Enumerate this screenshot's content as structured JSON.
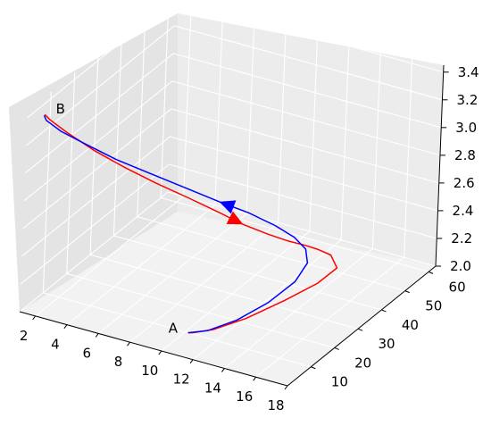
{
  "chart_data": {
    "type": "line3d",
    "title": "",
    "xlabel": "",
    "ylabel": "",
    "zlabel": "",
    "x_ticks": [
      "2",
      "4",
      "6",
      "8",
      "10",
      "12",
      "14",
      "16",
      "18"
    ],
    "y_ticks": [
      "10",
      "20",
      "30",
      "40",
      "50",
      "60"
    ],
    "z_ticks": [
      "2.0",
      "2.2",
      "2.4",
      "2.6",
      "2.8",
      "3.0",
      "3.2",
      "3.4"
    ],
    "xlim": [
      1,
      18
    ],
    "ylim": [
      0,
      63
    ],
    "zlim": [
      2.0,
      3.45
    ],
    "grid": true,
    "annotations": [
      {
        "text": "A",
        "x": 10.2,
        "y": 10,
        "z": 2.0
      },
      {
        "text": "B",
        "x": 2,
        "y": 0,
        "z": 3.45
      }
    ],
    "series": [
      {
        "color": "#ff0000",
        "arrow_direction": "A to B... forward from B to A",
        "points": [
          [
            1.98,
            0.7,
            3.445
          ],
          [
            2.2,
            1.6,
            3.4
          ],
          [
            3.0,
            3.9,
            3.3
          ],
          [
            4.2,
            8.0,
            3.15
          ],
          [
            5.4,
            13.0,
            3.0
          ],
          [
            6.6,
            18.5,
            2.85
          ],
          [
            7.8,
            24.5,
            2.7
          ],
          [
            8.8,
            30.5,
            2.55
          ],
          [
            9.6,
            36.5,
            2.4
          ],
          [
            10.3,
            42.5,
            2.27
          ],
          [
            10.9,
            47.5,
            2.17
          ],
          [
            11.4,
            51.5,
            2.1
          ],
          [
            11.9,
            53.5,
            2.06
          ],
          [
            12.7,
            53.8,
            2.04
          ],
          [
            13.6,
            50.5,
            2.02
          ],
          [
            13.5,
            43.0,
            2.01
          ],
          [
            12.9,
            33.0,
            2.004
          ],
          [
            12.1,
            22.0,
            2.0
          ],
          [
            11.2,
            14.0,
            2.0
          ],
          [
            10.4,
            10.5,
            2.0
          ],
          [
            10.2,
            10.0,
            2.0
          ]
        ],
        "arrow_at": 0.42
      },
      {
        "color": "#0000ff",
        "points": [
          [
            10.2,
            10.0,
            2.0
          ],
          [
            11.0,
            13.0,
            2.0
          ],
          [
            11.8,
            20.0,
            2.005
          ],
          [
            12.3,
            30.0,
            2.01
          ],
          [
            12.5,
            40.0,
            2.03
          ],
          [
            12.3,
            46.5,
            2.07
          ],
          [
            11.8,
            49.0,
            2.12
          ],
          [
            11.2,
            48.0,
            2.2
          ],
          [
            10.4,
            45.0,
            2.3
          ],
          [
            9.4,
            40.0,
            2.43
          ],
          [
            8.4,
            34.0,
            2.56
          ],
          [
            7.2,
            27.0,
            2.72
          ],
          [
            6.0,
            20.0,
            2.88
          ],
          [
            4.8,
            13.5,
            3.03
          ],
          [
            3.6,
            8.0,
            3.18
          ],
          [
            2.6,
            3.8,
            3.3
          ],
          [
            2.05,
            1.0,
            3.4
          ],
          [
            1.98,
            0.5,
            3.44
          ]
        ],
        "arrow_at": 0.58
      }
    ]
  }
}
